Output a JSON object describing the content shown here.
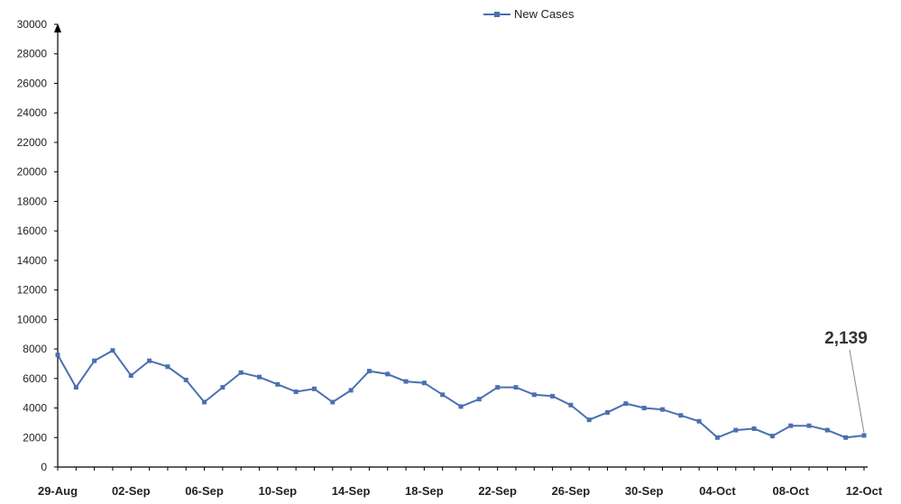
{
  "chart_data": {
    "type": "line",
    "title": "",
    "xlabel": "",
    "ylabel": "",
    "ylim": [
      0,
      30000
    ],
    "yticks": [
      0,
      2000,
      4000,
      6000,
      8000,
      10000,
      12000,
      14000,
      16000,
      18000,
      20000,
      22000,
      24000,
      26000,
      28000,
      30000
    ],
    "x_tick_labels": [
      "29-Aug",
      "02-Sep",
      "06-Sep",
      "10-Sep",
      "14-Sep",
      "18-Sep",
      "22-Sep",
      "26-Sep",
      "30-Sep",
      "04-Oct",
      "08-Oct",
      "12-Oct"
    ],
    "legend_position": "top-center",
    "grid": false,
    "series": [
      {
        "name": "New Cases",
        "color": "#4a70b0",
        "x": [
          "29-Aug",
          "30-Aug",
          "31-Aug",
          "01-Sep",
          "02-Sep",
          "03-Sep",
          "04-Sep",
          "05-Sep",
          "06-Sep",
          "07-Sep",
          "08-Sep",
          "09-Sep",
          "10-Sep",
          "11-Sep",
          "12-Sep",
          "13-Sep",
          "14-Sep",
          "15-Sep",
          "16-Sep",
          "17-Sep",
          "18-Sep",
          "19-Sep",
          "20-Sep",
          "21-Sep",
          "22-Sep",
          "23-Sep",
          "24-Sep",
          "25-Sep",
          "26-Sep",
          "27-Sep",
          "28-Sep",
          "29-Sep",
          "30-Sep",
          "01-Oct",
          "02-Oct",
          "03-Oct",
          "04-Oct",
          "05-Oct",
          "06-Oct",
          "07-Oct",
          "08-Oct",
          "09-Oct",
          "10-Oct",
          "11-Oct",
          "12-Oct"
        ],
        "values": [
          7600,
          5400,
          7200,
          7900,
          6200,
          7200,
          6800,
          5900,
          4400,
          5400,
          6400,
          6100,
          5600,
          5100,
          5300,
          4400,
          5200,
          6500,
          6300,
          5800,
          5700,
          4900,
          4100,
          4600,
          5400,
          5400,
          4900,
          4800,
          4200,
          3200,
          3700,
          4300,
          4000,
          3900,
          3500,
          3100,
          2000,
          2500,
          2600,
          2100,
          2800,
          2800,
          2500,
          2000,
          2139
        ]
      }
    ],
    "annotation": {
      "text": "2,139",
      "x": "12-Oct",
      "value": 2139
    }
  }
}
